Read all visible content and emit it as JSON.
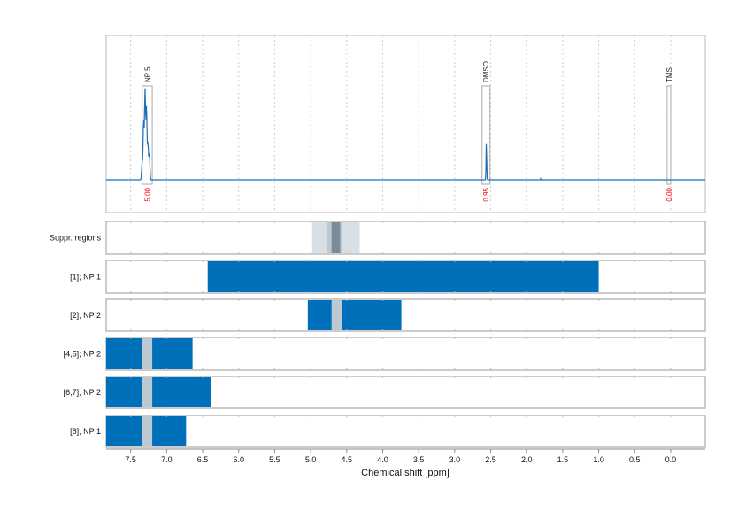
{
  "chart_data": {
    "type": "line",
    "xlabel": "Chemical shift [ppm]",
    "xlim": [
      7.84,
      -0.48
    ],
    "x_reversed": true,
    "xticks": [
      7.5,
      7.0,
      6.5,
      6.0,
      5.5,
      5.0,
      4.5,
      4.0,
      3.5,
      3.0,
      2.5,
      2.0,
      1.5,
      1.0,
      0.5,
      0.0
    ],
    "xtick_labels": [
      "7.5",
      "7.0",
      "6.5",
      "6.0",
      "5.5",
      "5.0",
      "4.5",
      "4.0",
      "3.5",
      "3.0",
      "2.5",
      "2.0",
      "1.5",
      "1.0",
      "0.5",
      "0.0"
    ],
    "grid": "vertical dotted, every 0.5 ppm (spectrum panel)",
    "colors": {
      "spectrum": "#1f6fb4",
      "bar": "#0070bb",
      "overlap": "#bcc9d1",
      "suppr_light": "#d8e0e6",
      "suppr_mid": "#bcc9d1",
      "suppr_dark": "#7a8c99",
      "integral": "#ff0000",
      "box": "#aaaaaa"
    },
    "spectrum": {
      "baseline": 0,
      "peaks": [
        {
          "ppm": 7.3,
          "height": 100,
          "width": 0.01
        },
        {
          "ppm": 7.32,
          "height": 65,
          "width": 0.01
        },
        {
          "ppm": 7.28,
          "height": 80,
          "width": 0.01
        },
        {
          "ppm": 7.26,
          "height": 40,
          "width": 0.01
        },
        {
          "ppm": 7.24,
          "height": 30,
          "width": 0.01
        },
        {
          "ppm": 7.34,
          "height": 20,
          "width": 0.01
        },
        {
          "ppm": 2.56,
          "height": 43,
          "width": 0.006
        },
        {
          "ppm": 1.8,
          "height": 3,
          "width": 0.006
        }
      ]
    },
    "annotations": [
      {
        "label": "NP 5",
        "from": 7.34,
        "to": 7.2,
        "integral": "5.00"
      },
      {
        "label": "DMSO",
        "from": 2.62,
        "to": 2.51,
        "integral": "0.95"
      },
      {
        "label": "TMS",
        "from": 0.05,
        "to": 0.0,
        "integral": "0.00"
      }
    ],
    "suppression": {
      "label": "Suppr. regions",
      "bands": [
        {
          "from": 4.98,
          "to": 4.32,
          "level": "light"
        },
        {
          "from": 4.77,
          "to": 4.56,
          "level": "mid"
        },
        {
          "from": 4.71,
          "to": 4.59,
          "level": "dark"
        }
      ]
    },
    "rows": [
      {
        "label": "[1]; NP 1",
        "from": 6.43,
        "to": 1.0,
        "overlaps": []
      },
      {
        "label": "[2]; NP 2",
        "from": 5.04,
        "to": 3.74,
        "overlaps": [
          [
            4.71,
            4.57
          ]
        ]
      },
      {
        "label": "[4,5]; NP 2",
        "from": 7.84,
        "to": 6.64,
        "overlaps": [
          [
            7.34,
            7.2
          ]
        ]
      },
      {
        "label": "[6,7]; NP 2",
        "from": 7.84,
        "to": 6.39,
        "overlaps": [
          [
            7.34,
            7.2
          ]
        ]
      },
      {
        "label": "[8]; NP 1",
        "from": 7.84,
        "to": 6.73,
        "overlaps": [
          [
            7.34,
            7.2
          ]
        ]
      }
    ]
  }
}
